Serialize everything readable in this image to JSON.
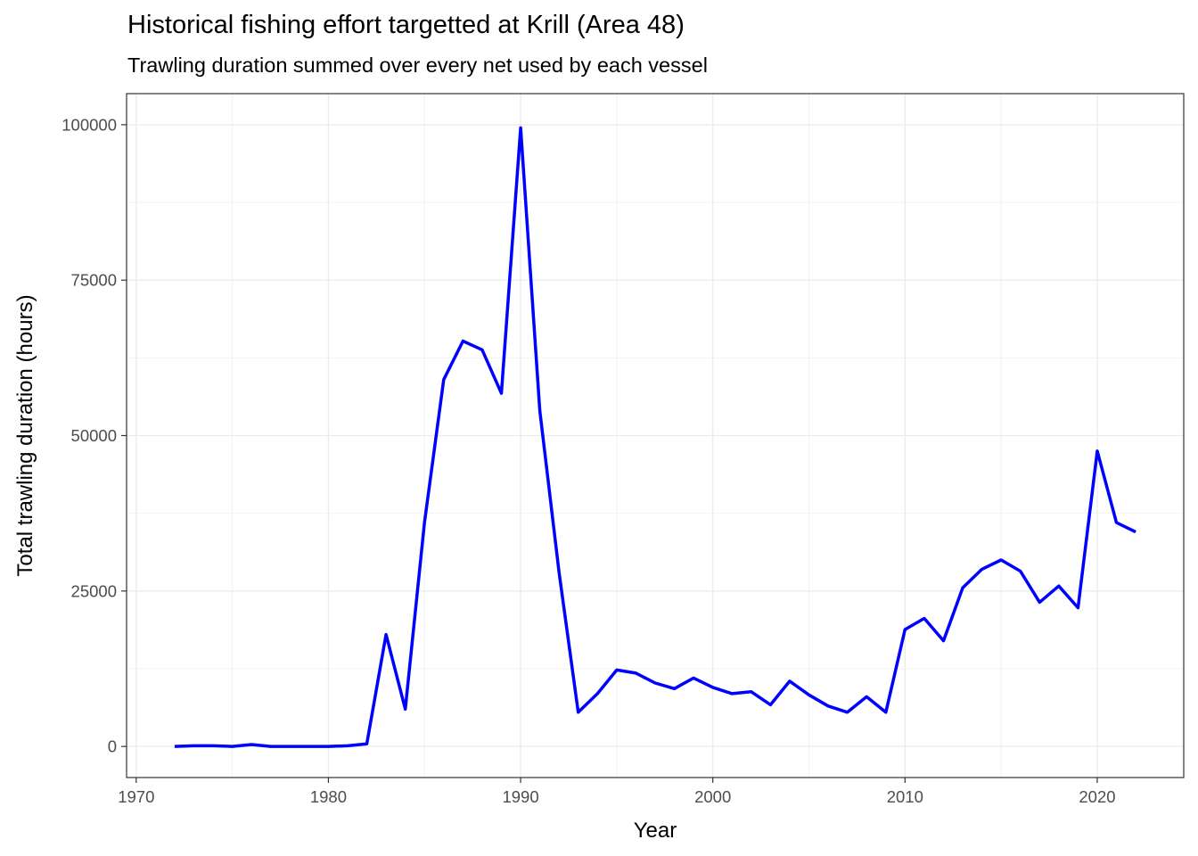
{
  "chart_data": {
    "type": "line",
    "title": "Historical fishing effort targetted at Krill (Area 48)",
    "subtitle": "Trawling duration summed over every net used by each vessel",
    "xlabel": "Year",
    "ylabel": "Total trawling duration (hours)",
    "xlim": [
      1969.5,
      2024.5
    ],
    "ylim": [
      -5000,
      105000
    ],
    "x_ticks": [
      1970,
      1980,
      1990,
      2000,
      2010,
      2020
    ],
    "y_ticks": [
      0,
      25000,
      50000,
      75000,
      100000
    ],
    "x_tick_labels": [
      "1970",
      "1980",
      "1990",
      "2000",
      "2010",
      "2020"
    ],
    "y_tick_labels": [
      "0",
      "25000",
      "50000",
      "75000",
      "100000"
    ],
    "grid": true,
    "line_color": "#0000ff",
    "series": [
      {
        "x": [
          1972,
          1973,
          1974,
          1975,
          1976,
          1977,
          1978,
          1979,
          1980,
          1981,
          1982,
          1983,
          1984,
          1985,
          1986,
          1987,
          1988,
          1989,
          1990,
          1991,
          1992,
          1993,
          1994,
          1995,
          1996,
          1997,
          1998,
          1999,
          2000,
          2001,
          2002,
          2003,
          2004,
          2005,
          2006,
          2007,
          2008,
          2009,
          2010,
          2011,
          2012,
          2013,
          2014,
          2015,
          2016,
          2017,
          2018,
          2019,
          2020,
          2021,
          2022
        ],
        "values": [
          0,
          100,
          100,
          0,
          300,
          0,
          0,
          0,
          0,
          100,
          400,
          18000,
          6000,
          36000,
          59000,
          65200,
          63800,
          56800,
          99500,
          54000,
          28000,
          5500,
          8500,
          12300,
          11800,
          10200,
          9300,
          11000,
          9500,
          8500,
          8800,
          6700,
          10500,
          8300,
          6500,
          5500,
          8000,
          5500,
          18800,
          20600,
          17000,
          25500,
          28500,
          30000,
          28200,
          23200,
          25800,
          22300,
          47500,
          36000,
          34500
        ]
      }
    ]
  }
}
